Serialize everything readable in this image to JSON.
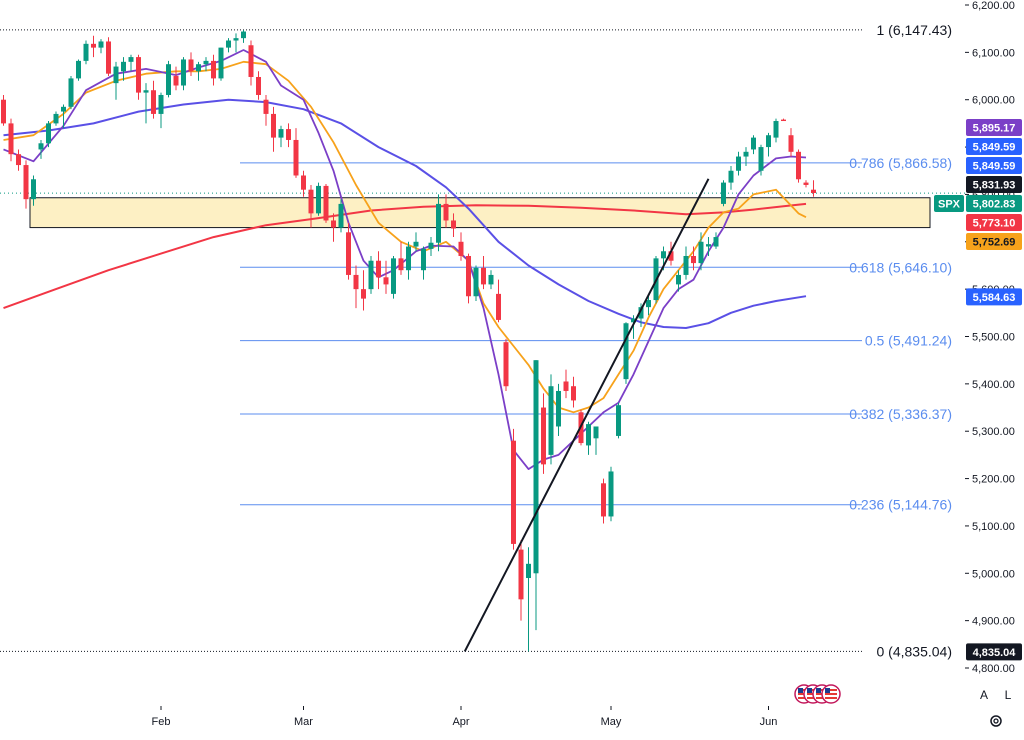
{
  "controls": {
    "auto_scale_label": "A",
    "log_scale_label": "L",
    "settings_icon": "gear-icon",
    "flags_icon": "us-flag-events-icon"
  },
  "chart_data": {
    "type": "candlestick",
    "symbol": "SPX",
    "price_axis": {
      "min": 4780,
      "max": 6210,
      "ticks": [
        4800,
        4900,
        5000,
        5100,
        5200,
        5300,
        5400,
        5500,
        5600,
        5700,
        5800,
        5900,
        6000,
        6100,
        6200
      ],
      "tick_labels": [
        "4,800.00",
        "4,900.00",
        "5,000.00",
        "5,100.00",
        "5,200.00",
        "5,300.00",
        "5,400.00",
        "5,500.00",
        "5,600.00",
        "5,700.00",
        "5,800.00",
        "5,900.00",
        "6,000.00",
        "6,100.00",
        "6,200.00"
      ]
    },
    "time_axis": {
      "labels": [
        {
          "label": "Feb",
          "bar": 21
        },
        {
          "label": "Mar",
          "bar": 40
        },
        {
          "label": "Apr",
          "bar": 61
        },
        {
          "label": "May",
          "bar": 81
        },
        {
          "label": "Jun",
          "bar": 102
        }
      ]
    },
    "fibonacci": [
      {
        "ratio": "1",
        "price": 6147.43,
        "label": "1 (6,147.43)",
        "color": "#131722"
      },
      {
        "ratio": "0.786",
        "price": 5866.58,
        "label": "0.786 (5,866.58)",
        "color": "#5b8def"
      },
      {
        "ratio": "0.618",
        "price": 5646.1,
        "label": "0.618 (5,646.10)",
        "color": "#5b8def"
      },
      {
        "ratio": "0.5",
        "price": 5491.24,
        "label": "0.5 (5,491.24)",
        "color": "#5b8def"
      },
      {
        "ratio": "0.382",
        "price": 5336.37,
        "label": "0.382 (5,336.37)",
        "color": "#5b8def"
      },
      {
        "ratio": "0.236",
        "price": 5144.76,
        "label": "0.236 (5,144.76)",
        "color": "#5b8def"
      },
      {
        "ratio": "0",
        "price": 4835.04,
        "label": "0 (4,835.04)",
        "color": "#131722"
      }
    ],
    "zone": {
      "price_top": 5793,
      "price_bottom": 5730,
      "fill": "#fdf0c4",
      "border": "#131722"
    },
    "trendline": {
      "from": {
        "bar": 61.5,
        "price": 4835
      },
      "to": {
        "bar": 94,
        "price": 5833
      }
    },
    "price_labels": [
      {
        "value": "5,895.17",
        "price": 5895.17,
        "bg": "#7b3fc7"
      },
      {
        "value": "5,849.59",
        "price": 5849.59,
        "bg": "#2962ff"
      },
      {
        "value": "5,849.59",
        "price": 5849.59,
        "bg": "#2962ff"
      },
      {
        "value": "5,831.93",
        "price": 5831.93,
        "bg": "#131722"
      },
      {
        "value": "5,802.83",
        "price": 5802.83,
        "bg": "#089981",
        "tag": "SPX"
      },
      {
        "value": "5,773.10",
        "price": 5773.1,
        "bg": "#f23645"
      },
      {
        "value": "5,752.69",
        "price": 5752.69,
        "bg": "#f7a21b",
        "fg": "#131722"
      },
      {
        "value": "5,584.63",
        "price": 5584.63,
        "bg": "#2962ff"
      },
      {
        "value": "4,835.04",
        "price": 4835.04,
        "bg": "#131722"
      }
    ],
    "colors": {
      "up": "#089981",
      "down": "#f23645",
      "ma_fast": "#7b3fc7",
      "ma_mid": "#f7a21b",
      "ma_slow": "#5a50e6",
      "ma_long": "#f23645"
    },
    "candles": [
      [
        6000,
        6010,
        5945,
        5950
      ],
      [
        5950,
        5960,
        5870,
        5885
      ],
      [
        5885,
        5895,
        5850,
        5862
      ],
      [
        5862,
        5872,
        5770,
        5790
      ],
      [
        5790,
        5840,
        5776,
        5832
      ],
      [
        5895,
        5915,
        5875,
        5908
      ],
      [
        5908,
        5955,
        5900,
        5950
      ],
      [
        5950,
        5975,
        5945,
        5970
      ],
      [
        5975,
        5990,
        5940,
        5985
      ],
      [
        5985,
        6050,
        5980,
        6045
      ],
      [
        6045,
        6085,
        6040,
        6082
      ],
      [
        6082,
        6125,
        6075,
        6118
      ],
      [
        6118,
        6135,
        6090,
        6110
      ],
      [
        6110,
        6128,
        6098,
        6123
      ],
      [
        6123,
        6132,
        6050,
        6055
      ],
      [
        6035,
        6080,
        6000,
        6070
      ],
      [
        6060,
        6090,
        6040,
        6080
      ],
      [
        6080,
        6095,
        6060,
        6090
      ],
      [
        6090,
        6095,
        6000,
        6015
      ],
      [
        6015,
        6035,
        5950,
        6020
      ],
      [
        6020,
        6040,
        5960,
        5970
      ],
      [
        5970,
        6015,
        5940,
        6010
      ],
      [
        6010,
        6082,
        6005,
        6075
      ],
      [
        6050,
        6070,
        6020,
        6030
      ],
      [
        6030,
        6090,
        6020,
        6085
      ],
      [
        6085,
        6100,
        6050,
        6060
      ],
      [
        6060,
        6080,
        6040,
        6075
      ],
      [
        6075,
        6090,
        6060,
        6082
      ],
      [
        6082,
        6095,
        6030,
        6045
      ],
      [
        6045,
        6110,
        6040,
        6110
      ],
      [
        6110,
        6130,
        6100,
        6125
      ],
      [
        6125,
        6140,
        6100,
        6130
      ],
      [
        6130,
        6147,
        6120,
        6144
      ],
      [
        6115,
        6125,
        6030,
        6048
      ],
      [
        6048,
        6060,
        6000,
        6010
      ],
      [
        6000,
        6010,
        5945,
        5970
      ],
      [
        5970,
        5985,
        5890,
        5920
      ],
      [
        5920,
        5945,
        5900,
        5938
      ],
      [
        5938,
        5950,
        5900,
        5915
      ],
      [
        5915,
        5940,
        5835,
        5840
      ],
      [
        5840,
        5850,
        5795,
        5810
      ],
      [
        5810,
        5820,
        5730,
        5760
      ],
      [
        5760,
        5825,
        5755,
        5818
      ],
      [
        5818,
        5822,
        5740,
        5745
      ],
      [
        5745,
        5760,
        5700,
        5730
      ],
      [
        5730,
        5790,
        5720,
        5780
      ],
      [
        5720,
        5740,
        5620,
        5630
      ],
      [
        5630,
        5650,
        5560,
        5600
      ],
      [
        5600,
        5640,
        5555,
        5580
      ],
      [
        5600,
        5670,
        5590,
        5660
      ],
      [
        5660,
        5680,
        5600,
        5625
      ],
      [
        5625,
        5660,
        5590,
        5610
      ],
      [
        5590,
        5670,
        5580,
        5665
      ],
      [
        5665,
        5700,
        5630,
        5640
      ],
      [
        5640,
        5700,
        5620,
        5690
      ],
      [
        5690,
        5720,
        5680,
        5700
      ],
      [
        5640,
        5690,
        5620,
        5685
      ],
      [
        5685,
        5710,
        5670,
        5698
      ],
      [
        5698,
        5800,
        5680,
        5780
      ],
      [
        5780,
        5800,
        5730,
        5745
      ],
      [
        5745,
        5760,
        5710,
        5728
      ],
      [
        5700,
        5720,
        5660,
        5670
      ],
      [
        5670,
        5675,
        5570,
        5585
      ],
      [
        5585,
        5650,
        5575,
        5645
      ],
      [
        5645,
        5670,
        5600,
        5610
      ],
      [
        5610,
        5640,
        5600,
        5630
      ],
      [
        5590,
        5620,
        5530,
        5535
      ],
      [
        5488,
        5495,
        5385,
        5395
      ],
      [
        5280,
        5305,
        5050,
        5062
      ],
      [
        5050,
        5070,
        4900,
        4945
      ],
      [
        4990,
        5055,
        4835,
        5020
      ],
      [
        5000,
        5450,
        4880,
        5450
      ],
      [
        5350,
        5380,
        5210,
        5230
      ],
      [
        5250,
        5420,
        5230,
        5395
      ],
      [
        5310,
        5400,
        5290,
        5385
      ],
      [
        5405,
        5430,
        5370,
        5385
      ],
      [
        5395,
        5415,
        5350,
        5365
      ],
      [
        5340,
        5345,
        5270,
        5275
      ],
      [
        5270,
        5320,
        5250,
        5315
      ],
      [
        5285,
        5310,
        5250,
        5310
      ],
      [
        5190,
        5200,
        5105,
        5120
      ],
      [
        5120,
        5225,
        5110,
        5215
      ],
      [
        5290,
        5360,
        5285,
        5355
      ],
      [
        5410,
        5530,
        5400,
        5528
      ],
      [
        5530,
        5545,
        5495,
        5538
      ],
      [
        5538,
        5570,
        5520,
        5562
      ],
      [
        5562,
        5590,
        5545,
        5577
      ],
      [
        5577,
        5670,
        5570,
        5665
      ],
      [
        5665,
        5690,
        5640,
        5680
      ],
      [
        5680,
        5700,
        5650,
        5660
      ],
      [
        5610,
        5640,
        5595,
        5630
      ],
      [
        5630,
        5690,
        5620,
        5670
      ],
      [
        5670,
        5690,
        5640,
        5655
      ],
      [
        5655,
        5720,
        5640,
        5700
      ],
      [
        5690,
        5710,
        5670,
        5695
      ],
      [
        5690,
        5720,
        5685,
        5710
      ],
      [
        5780,
        5830,
        5775,
        5825
      ],
      [
        5825,
        5860,
        5810,
        5850
      ],
      [
        5850,
        5890,
        5840,
        5880
      ],
      [
        5880,
        5900,
        5860,
        5890
      ],
      [
        5895,
        5925,
        5885,
        5920
      ],
      [
        5850,
        5905,
        5840,
        5900
      ],
      [
        5900,
        5930,
        5880,
        5925
      ],
      [
        5920,
        5960,
        5910,
        5955
      ],
      [
        5958,
        5960,
        5955,
        5955
      ],
      [
        5925,
        5940,
        5880,
        5890
      ],
      [
        5890,
        5895,
        5825,
        5832
      ],
      [
        5825,
        5830,
        5815,
        5820
      ],
      [
        5810,
        5830,
        5795,
        5803
      ]
    ],
    "ma_fast": [
      [
        0,
        5895
      ],
      [
        4,
        5870
      ],
      [
        8,
        5945
      ],
      [
        11,
        6020
      ],
      [
        15,
        6055
      ],
      [
        19,
        6065
      ],
      [
        23,
        6052
      ],
      [
        26,
        6068
      ],
      [
        29,
        6082
      ],
      [
        32,
        6105
      ],
      [
        35,
        6080
      ],
      [
        37,
        6030
      ],
      [
        40,
        6000
      ],
      [
        42,
        5930
      ],
      [
        44,
        5850
      ],
      [
        46,
        5740
      ],
      [
        48,
        5660
      ],
      [
        50,
        5625
      ],
      [
        52,
        5640
      ],
      [
        55,
        5680
      ],
      [
        57,
        5692
      ],
      [
        60,
        5690
      ],
      [
        62,
        5660
      ],
      [
        64,
        5560
      ],
      [
        66,
        5420
      ],
      [
        68,
        5260
      ],
      [
        70,
        5220
      ],
      [
        72,
        5240
      ],
      [
        74,
        5250
      ],
      [
        76,
        5280
      ],
      [
        78,
        5310
      ],
      [
        80,
        5340
      ],
      [
        82,
        5360
      ],
      [
        84,
        5420
      ],
      [
        86,
        5490
      ],
      [
        88,
        5560
      ],
      [
        90,
        5600
      ],
      [
        92,
        5620
      ],
      [
        94,
        5680
      ],
      [
        96,
        5730
      ],
      [
        98,
        5800
      ],
      [
        100,
        5840
      ],
      [
        103,
        5876
      ],
      [
        105,
        5880
      ],
      [
        107,
        5878
      ]
    ],
    "ma_mid": [
      [
        0,
        5915
      ],
      [
        4,
        5925
      ],
      [
        8,
        5970
      ],
      [
        11,
        6015
      ],
      [
        15,
        6040
      ],
      [
        19,
        6055
      ],
      [
        23,
        6060
      ],
      [
        26,
        6060
      ],
      [
        29,
        6065
      ],
      [
        32,
        6080
      ],
      [
        35,
        6075
      ],
      [
        38,
        6040
      ],
      [
        41,
        5985
      ],
      [
        44,
        5910
      ],
      [
        47,
        5820
      ],
      [
        50,
        5740
      ],
      [
        53,
        5700
      ],
      [
        56,
        5680
      ],
      [
        59,
        5700
      ],
      [
        62,
        5660
      ],
      [
        64,
        5570
      ],
      [
        66,
        5520
      ],
      [
        68,
        5480
      ],
      [
        70,
        5440
      ],
      [
        72,
        5390
      ],
      [
        74,
        5350
      ],
      [
        76,
        5340
      ],
      [
        78,
        5350
      ],
      [
        80,
        5370
      ],
      [
        82,
        5420
      ],
      [
        84,
        5470
      ],
      [
        86,
        5540
      ],
      [
        88,
        5600
      ],
      [
        90,
        5640
      ],
      [
        92,
        5680
      ],
      [
        94,
        5730
      ],
      [
        96,
        5762
      ],
      [
        98,
        5770
      ],
      [
        100,
        5800
      ],
      [
        103,
        5810
      ],
      [
        106,
        5760
      ],
      [
        107,
        5752
      ]
    ],
    "ma_slow": [
      [
        0,
        5925
      ],
      [
        6,
        5935
      ],
      [
        12,
        5950
      ],
      [
        18,
        5975
      ],
      [
        24,
        5990
      ],
      [
        30,
        6000
      ],
      [
        35,
        5995
      ],
      [
        40,
        5980
      ],
      [
        45,
        5950
      ],
      [
        50,
        5900
      ],
      [
        55,
        5860
      ],
      [
        59,
        5815
      ],
      [
        62,
        5770
      ],
      [
        66,
        5700
      ],
      [
        70,
        5650
      ],
      [
        74,
        5610
      ],
      [
        78,
        5575
      ],
      [
        82,
        5548
      ],
      [
        85,
        5530
      ],
      [
        88,
        5520
      ],
      [
        91,
        5518
      ],
      [
        94,
        5528
      ],
      [
        97,
        5550
      ],
      [
        100,
        5565
      ],
      [
        103,
        5575
      ],
      [
        107,
        5585
      ]
    ],
    "ma_long": [
      [
        0,
        5560
      ],
      [
        7,
        5600
      ],
      [
        14,
        5640
      ],
      [
        21,
        5675
      ],
      [
        28,
        5710
      ],
      [
        35,
        5735
      ],
      [
        42,
        5750
      ],
      [
        49,
        5766
      ],
      [
        56,
        5774
      ],
      [
        63,
        5777
      ],
      [
        70,
        5776
      ],
      [
        77,
        5772
      ],
      [
        84,
        5766
      ],
      [
        91,
        5758
      ],
      [
        96,
        5762
      ],
      [
        100,
        5768
      ],
      [
        104,
        5775
      ],
      [
        107,
        5780
      ]
    ]
  }
}
